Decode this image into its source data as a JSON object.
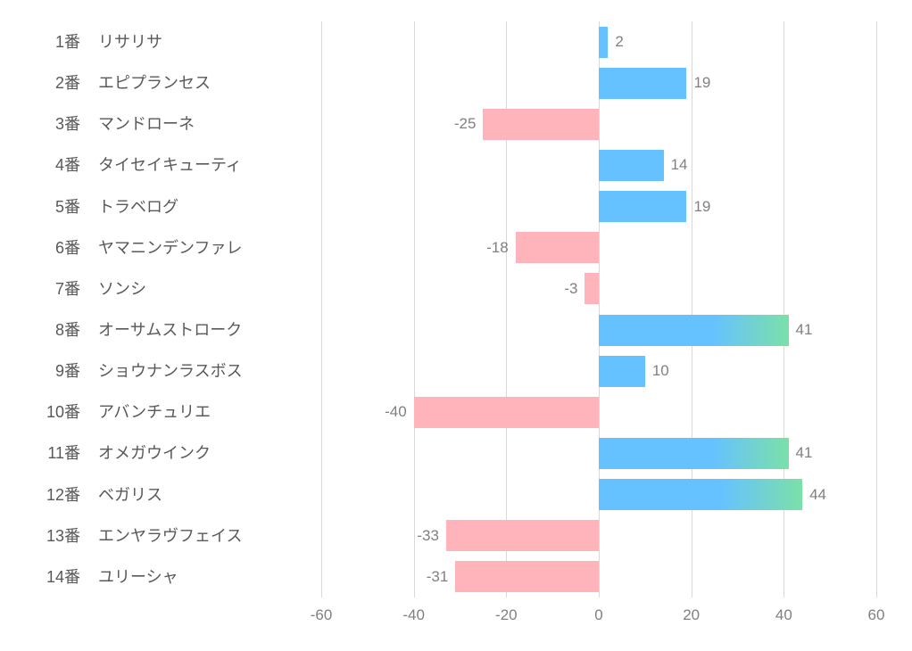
{
  "chart": {
    "type": "bar-horizontal-diverging",
    "xlim": [
      -60,
      60
    ],
    "xticks": [
      -60,
      -40,
      -20,
      0,
      20,
      40,
      60
    ],
    "grid_color": "#d9d9d9",
    "background_color": "#ffffff",
    "label_color": "#595959",
    "value_label_color": "#808080",
    "axis_label_color": "#808080",
    "label_fontsize": 18,
    "value_fontsize": 17,
    "axis_fontsize": 17,
    "neg_color": "#ffb3ba",
    "pos_color": "#66c2ff",
    "gradient_threshold": 40,
    "gradient_end_color": "#7be0a8",
    "bar_height_ratio": 0.76,
    "categories": [
      {
        "num": "1番",
        "name": "リサリサ",
        "value": 2,
        "style": "pos"
      },
      {
        "num": "2番",
        "name": "エピプランセス",
        "value": 19,
        "style": "pos"
      },
      {
        "num": "3番",
        "name": "マンドローネ",
        "value": -25,
        "style": "neg"
      },
      {
        "num": "4番",
        "name": "タイセイキューティ",
        "value": 14,
        "style": "pos"
      },
      {
        "num": "5番",
        "name": "トラベログ",
        "value": 19,
        "style": "pos"
      },
      {
        "num": "6番",
        "name": "ヤマニンデンファレ",
        "value": -18,
        "style": "neg"
      },
      {
        "num": "7番",
        "name": "ソンシ",
        "value": -3,
        "style": "neg"
      },
      {
        "num": "8番",
        "name": "オーサムストローク",
        "value": 41,
        "style": "grad"
      },
      {
        "num": "9番",
        "name": "ショウナンラスボス",
        "value": 10,
        "style": "pos"
      },
      {
        "num": "10番",
        "name": "アバンチュリエ",
        "value": -40,
        "style": "neg"
      },
      {
        "num": "11番",
        "name": "オメガウインク",
        "value": 41,
        "style": "grad"
      },
      {
        "num": "12番",
        "name": "ベガリス",
        "value": 44,
        "style": "grad"
      },
      {
        "num": "13番",
        "name": "エンヤラヴフェイス",
        "value": -33,
        "style": "neg"
      },
      {
        "num": "14番",
        "name": "ユリーシャ",
        "value": -31,
        "style": "neg"
      }
    ]
  }
}
